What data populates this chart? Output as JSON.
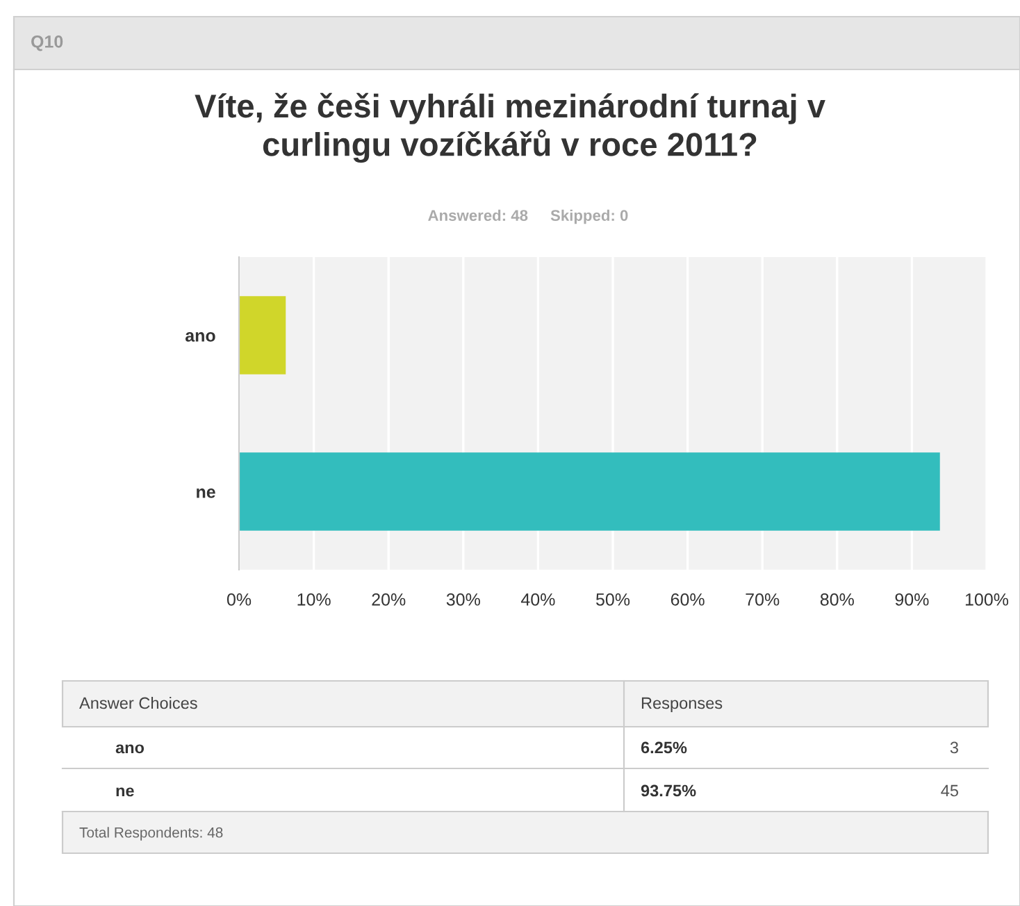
{
  "chart_data": {
    "type": "bar",
    "orientation": "horizontal",
    "title": "Víte, že češi vyhráli mezinárodní turnaj v\ncurlingu vozíčkářů v roce 2011?",
    "categories": [
      "ano",
      "ne"
    ],
    "values": [
      6.25,
      93.75
    ],
    "colors": [
      "#d0d62a",
      "#33bdbd"
    ],
    "xlim": [
      0,
      100
    ],
    "xticks": [
      {
        "value": 0,
        "label": "0%"
      },
      {
        "value": 10,
        "label": "10%"
      },
      {
        "value": 20,
        "label": "20%"
      },
      {
        "value": 30,
        "label": "30%"
      },
      {
        "value": 40,
        "label": "40%"
      },
      {
        "value": 50,
        "label": "50%"
      },
      {
        "value": 60,
        "label": "60%"
      },
      {
        "value": 70,
        "label": "70%"
      },
      {
        "value": 80,
        "label": "80%"
      },
      {
        "value": 90,
        "label": "90%"
      },
      {
        "value": 100,
        "label": "100%"
      }
    ],
    "grid": "x",
    "annotations": [
      "Q10",
      "Answered: 48",
      "Skipped: 0",
      "Answer Choices",
      "Responses",
      "6.25%",
      "3",
      "93.75%",
      "45",
      "Total Respondents: 48"
    ]
  }
}
